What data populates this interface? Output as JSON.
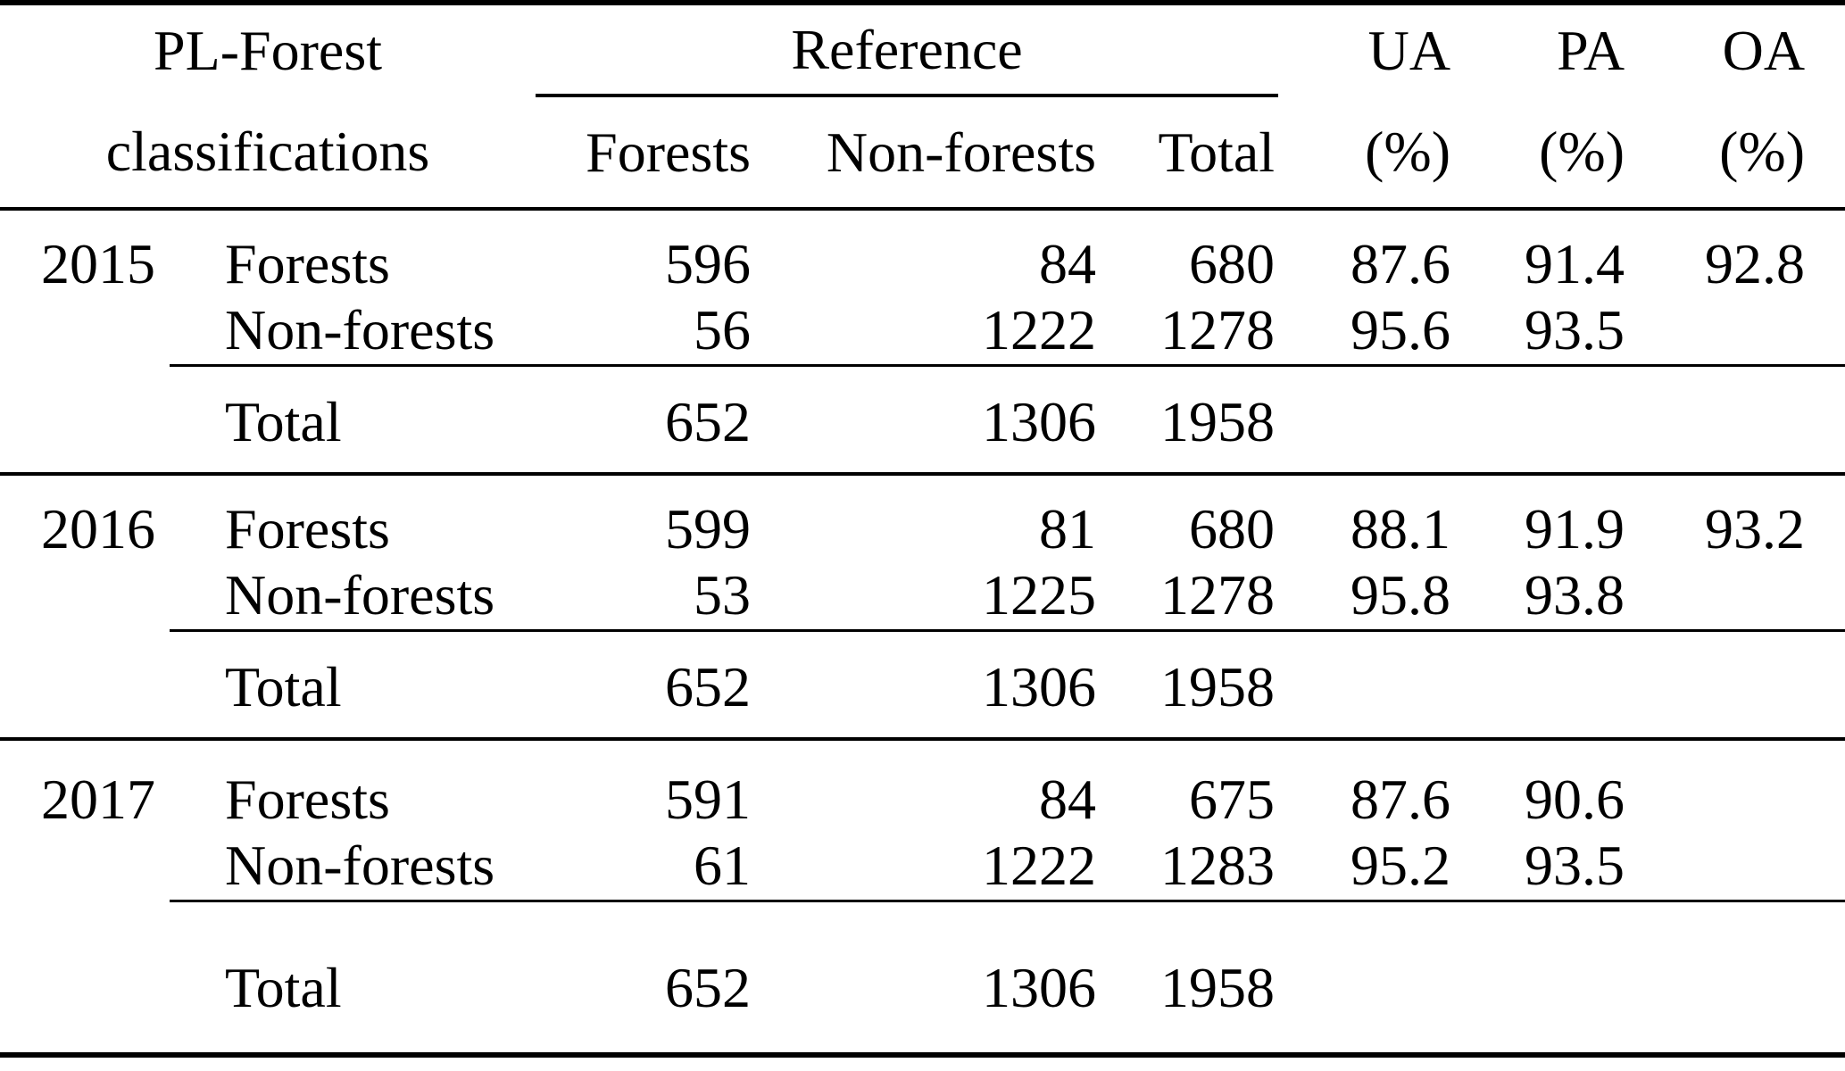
{
  "table": {
    "header": {
      "left_title_line1": "PL-Forest",
      "left_title_line2": "classifications",
      "reference_label": "Reference",
      "reference_columns": [
        "Forests",
        "Non-forests",
        "Total"
      ],
      "metrics": [
        {
          "label": "UA",
          "unit": "(%)"
        },
        {
          "label": "PA",
          "unit": "(%)"
        },
        {
          "label": "OA",
          "unit": "(%)"
        }
      ]
    },
    "blocks": [
      {
        "year": "2015",
        "rows": [
          {
            "label": "Forests",
            "cells": [
              "596",
              "84",
              "680",
              "87.6",
              "91.4",
              "92.8"
            ]
          },
          {
            "label": "Non-forests",
            "cells": [
              "56",
              "1222",
              "1278",
              "95.6",
              "93.5",
              ""
            ]
          }
        ],
        "total_row": {
          "label": "Total",
          "cells": [
            "652",
            "1306",
            "1958",
            "",
            "",
            ""
          ]
        }
      },
      {
        "year": "2016",
        "rows": [
          {
            "label": "Forests",
            "cells": [
              "599",
              "81",
              "680",
              "88.1",
              "91.9",
              "93.2"
            ]
          },
          {
            "label": "Non-forests",
            "cells": [
              "53",
              "1225",
              "1278",
              "95.8",
              "93.8",
              ""
            ]
          }
        ],
        "total_row": {
          "label": "Total",
          "cells": [
            "652",
            "1306",
            "1958",
            "",
            "",
            ""
          ]
        }
      },
      {
        "year": "2017",
        "rows": [
          {
            "label": "Forests",
            "cells": [
              "591",
              "84",
              "675",
              "87.6",
              "90.6",
              ""
            ]
          },
          {
            "label": "Non-forests",
            "cells": [
              "61",
              "1222",
              "1283",
              "95.2",
              "93.5",
              ""
            ]
          }
        ],
        "total_row": {
          "label": "Total",
          "cells": [
            "652",
            "1306",
            "1958",
            "",
            "",
            ""
          ]
        }
      }
    ]
  },
  "colors": {
    "text": "#000000",
    "background": "#ffffff",
    "rule": "#000000"
  }
}
